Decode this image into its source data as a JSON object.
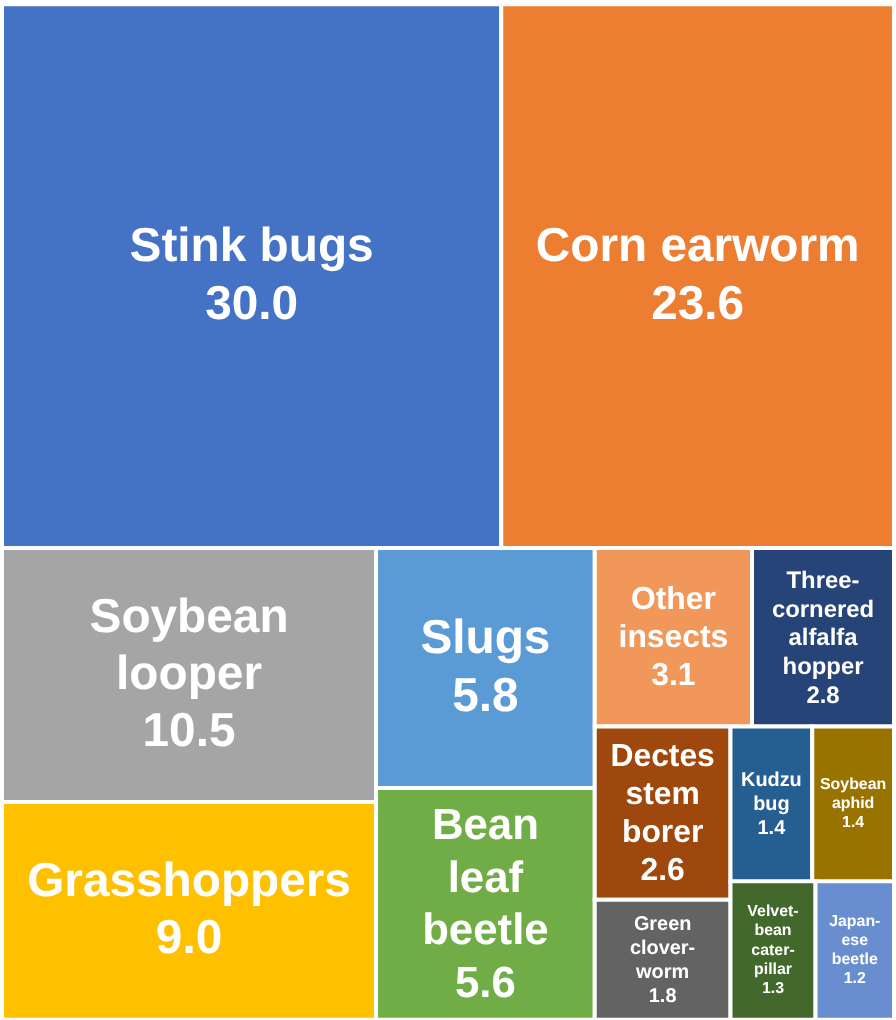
{
  "chart_data": {
    "type": "other",
    "categories": [
      "Stink bugs",
      "Corn earworm",
      "Soybean looper",
      "Grasshoppers",
      "Slugs",
      "Bean leaf beetle",
      "Other insects",
      "Three-cornered alfalfa hopper",
      "Dectes stem borer",
      "Green clover-worm",
      "Kudzu bug",
      "Soybean aphid",
      "Velvet-bean cater-pillar",
      "Japan-ese beetle"
    ],
    "value_labels": [
      "30.0",
      "23.6",
      "10.5",
      "9.0",
      "5.8",
      "5.6",
      "3.1",
      "2.8",
      "2.6",
      "1.8",
      "1.4",
      "1.4",
      "1.3",
      "1.2"
    ],
    "values": [
      30.0,
      23.6,
      10.5,
      9.0,
      5.8,
      5.6,
      3.1,
      2.8,
      2.6,
      1.8,
      1.4,
      1.4,
      1.3,
      1.2
    ],
    "colors": [
      "#4472c4",
      "#ed7d31",
      "#a5a5a5",
      "#ffc000",
      "#5b9bd5",
      "#70ad47",
      "#f1975a",
      "#264478",
      "#9e480e",
      "#636363",
      "#255e91",
      "#997300",
      "#43682b",
      "#698ed0"
    ]
  }
}
